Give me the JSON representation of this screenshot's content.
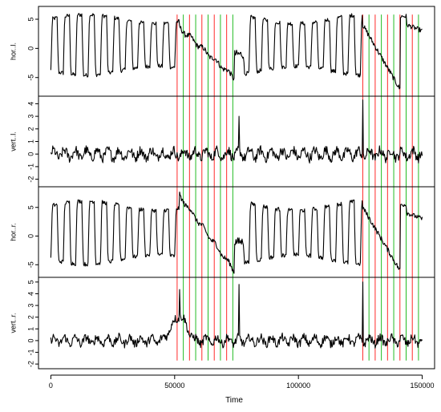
{
  "chart_data": {
    "type": "line",
    "xlabel": "Time",
    "xlim": [
      -5000,
      155000
    ],
    "x_ticks": [
      0,
      50000,
      100000,
      150000
    ],
    "marker_colors": {
      "red": "#ff2a2a",
      "green": "#22bb22"
    },
    "marker_groups": [
      {
        "red_x": [
          51000,
          56000,
          61000,
          66000,
          71000
        ],
        "green_x": [
          53500,
          58500,
          63500,
          68500,
          73500
        ],
        "span": "panels 1-4 (top panel from y=5.8 down)"
      },
      {
        "red_x": [
          126000,
          131000,
          136000,
          141000,
          146000
        ],
        "green_x": [
          128500,
          133500,
          138500,
          143500,
          148500
        ],
        "span": "panels 1-4 (top panel from y=5.8 down)"
      }
    ],
    "panels": [
      {
        "ylabel": "hor..l.",
        "ylim": [
          -8.2,
          7.2
        ],
        "y_ticks": [
          -5,
          0,
          5
        ],
        "series_kind": "oscillation",
        "params": {
          "period": 5000,
          "amplitude": 5.2,
          "offset": 0.6,
          "seg1_ramp": [
            3.5,
            -5.0
          ],
          "seg2_ramp": [
            4.0,
            -7.0
          ]
        }
      },
      {
        "ylabel": "vert..l.",
        "ylim": [
          -2.6,
          4.6
        ],
        "y_ticks": [
          -2,
          -1,
          0,
          1,
          2,
          3,
          4
        ],
        "series_kind": "noise",
        "params": {
          "baseline": 0.0,
          "amplitude": 0.55,
          "spike_x": 126000,
          "spike_y": 4.3,
          "spike2_x": 76000,
          "spike2_y": 3.0
        }
      },
      {
        "ylabel": "hor..r.",
        "ylim": [
          -7.2,
          8.6
        ],
        "y_ticks": [
          -5,
          0,
          5
        ],
        "series_kind": "oscillation",
        "params": {
          "period": 5000,
          "amplitude": 5.5,
          "offset": 0.6,
          "seg1_ramp": [
            7.0,
            -6.0
          ],
          "seg2_ramp": [
            5.0,
            -6.0
          ]
        }
      },
      {
        "ylabel": "vert..r.",
        "ylim": [
          -2.4,
          5.4
        ],
        "y_ticks": [
          -2,
          -1,
          0,
          1,
          2,
          3,
          4,
          5
        ],
        "series_kind": "noise",
        "params": {
          "baseline": 0.0,
          "amplitude": 0.5,
          "rise_x": [
            45000,
            52000
          ],
          "rise_y": 2.3,
          "spike_x": 76000,
          "spike_y": 4.8,
          "spike2_x": 126000,
          "spike2_y": 5.0
        }
      }
    ]
  }
}
